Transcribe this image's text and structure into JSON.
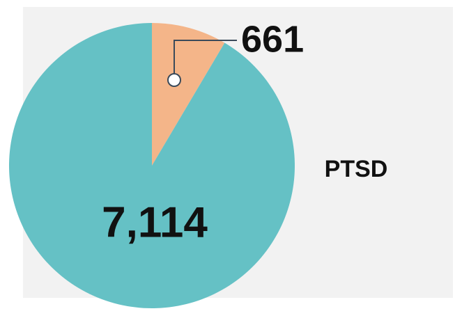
{
  "chart_data": {
    "type": "pie",
    "title": "PTSD",
    "values": [
      661,
      7114
    ],
    "value_labels": [
      "661",
      "7,114"
    ],
    "colors": [
      "#f4b589",
      "#65c1c5"
    ]
  }
}
